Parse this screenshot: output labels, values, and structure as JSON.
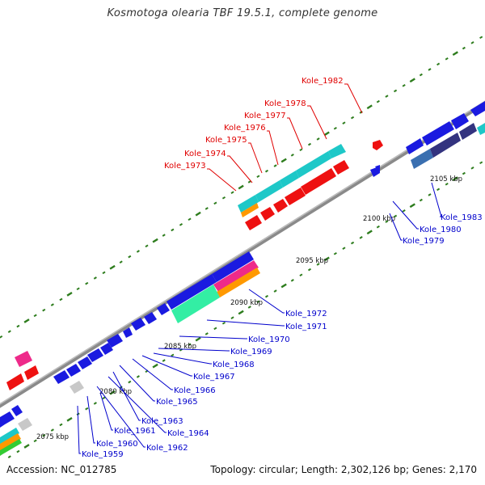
{
  "title": "Kosmotoga olearia TBF 19.5.1, complete genome",
  "footer": {
    "accession": "Accession: NC_012785",
    "summary": "Topology: circular; Length: 2,302,126 bp; Genes: 2,170"
  },
  "colors": {
    "backbone": "#888888",
    "tick": "#2e7d1e",
    "red_gene": "#ee1111",
    "blue_gene": "#1a1ae0",
    "cyan_gene": "#1ec8c8",
    "red_label": "#e00000",
    "blue_label": "#0000cc"
  },
  "scale_labels": [
    "2075 kbp",
    "2080 kbp",
    "2085 kbp",
    "2090 kbp",
    "2095 kbp",
    "2100 kbp",
    "2105 kbp"
  ],
  "red_labels": [
    "Kole_1982",
    "Kole_1978",
    "Kole_1977",
    "Kole_1976",
    "Kole_1975",
    "Kole_1974",
    "Kole_1973"
  ],
  "blue_labels": [
    "Kole_1983",
    "Kole_1980",
    "Kole_1979",
    "Kole_1972",
    "Kole_1971",
    "Kole_1970",
    "Kole_1969",
    "Kole_1968",
    "Kole_1967",
    "Kole_1966",
    "Kole_1965",
    "Kole_1964",
    "Kole_1963",
    "Kole_1962",
    "Kole_1961",
    "Kole_1960",
    "Kole_1959"
  ]
}
